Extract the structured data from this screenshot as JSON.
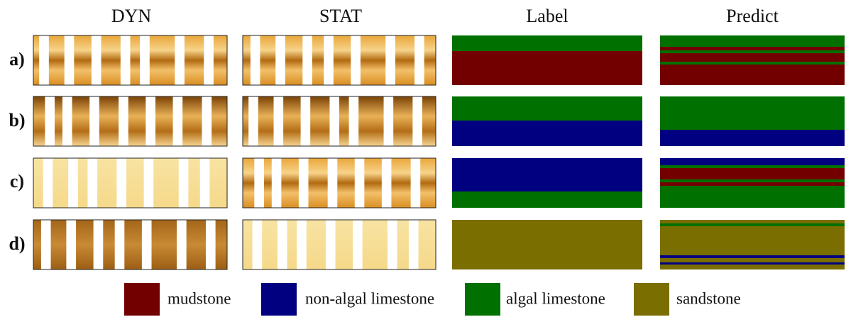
{
  "columns": [
    "DYN",
    "STAT",
    "Label",
    "Predict"
  ],
  "rows": [
    "a)",
    "b)",
    "c)",
    "d)"
  ],
  "legend": [
    "mudstone",
    "non-algal limestone",
    "algal limestone",
    "sandstone"
  ]
}
